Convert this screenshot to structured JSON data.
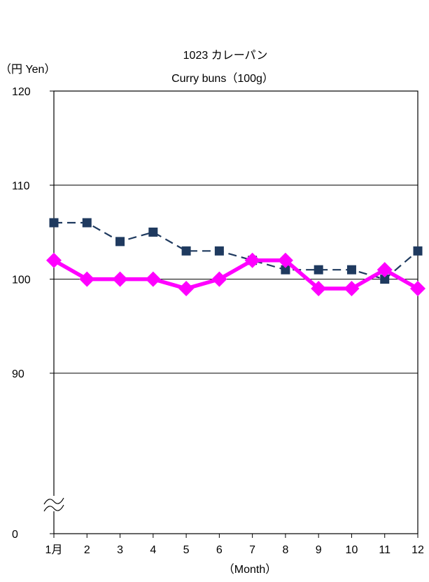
{
  "chart_data": {
    "type": "line",
    "title": "1023 カレーパン",
    "subtitle": "Curry buns（100g）",
    "ylabel": "（円 Yen）",
    "xlabel": "（Month）",
    "categories": [
      "1月",
      "2",
      "3",
      "4",
      "5",
      "6",
      "7",
      "8",
      "9",
      "10",
      "11",
      "12"
    ],
    "ylim": [
      0,
      120
    ],
    "axis_break": true,
    "yticks": [
      "0",
      "90",
      "100",
      "110",
      "120"
    ],
    "grid": true,
    "series": [
      {
        "color": "#1f3a5f",
        "style": "dashed-square",
        "values": [
          106,
          106,
          104,
          105,
          103,
          103,
          102,
          101,
          101,
          101,
          100,
          103
        ]
      },
      {
        "color": "#ff00ff",
        "style": "solid-diamond",
        "values": [
          102,
          100,
          100,
          100,
          99,
          100,
          102,
          102,
          99,
          99,
          101,
          99
        ]
      }
    ]
  }
}
